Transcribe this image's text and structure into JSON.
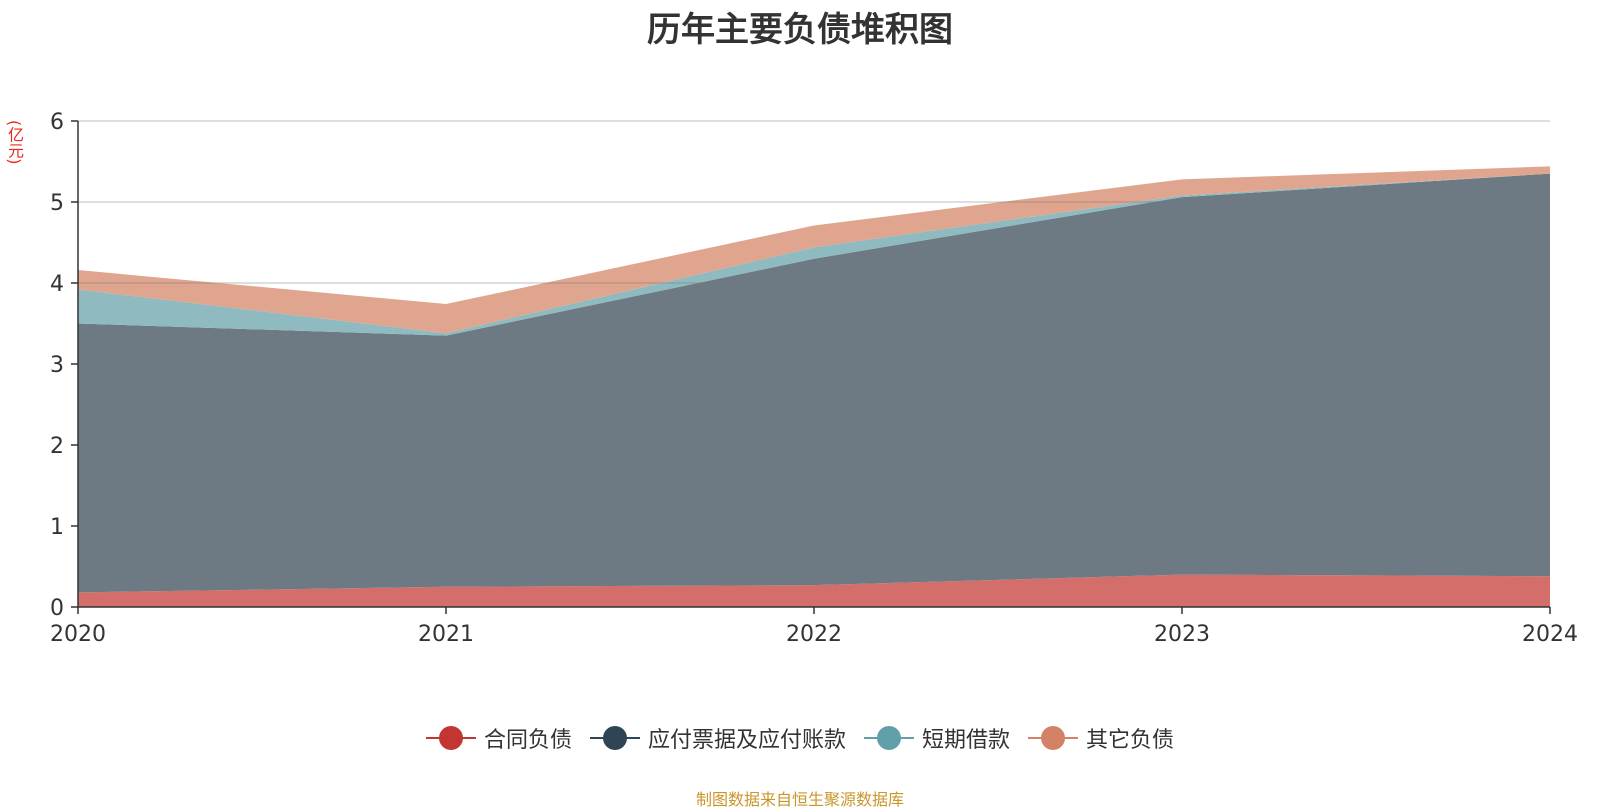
{
  "title": "历年主要负债堆积图",
  "unit_label": "(亿元)",
  "source_note": "制图数据来自恒生聚源数据库",
  "chart_data": {
    "type": "area",
    "stacked": true,
    "title": "历年主要负债堆积图",
    "ylabel": "(亿元)",
    "x": [
      "2020",
      "2021",
      "2022",
      "2023",
      "2024"
    ],
    "ylim": [
      0,
      6
    ],
    "yticks": [
      0,
      1,
      2,
      3,
      4,
      5,
      6
    ],
    "grid": true,
    "legend_position": "bottom",
    "series": [
      {
        "name": "合同负债",
        "color": "#c23531",
        "fill": "#d46e6b",
        "values": [
          0.18,
          0.25,
          0.27,
          0.4,
          0.38
        ]
      },
      {
        "name": "应付票据及应付账款",
        "color": "#2f4554",
        "fill": "#6d7a84",
        "values": [
          3.32,
          3.1,
          4.03,
          4.66,
          4.97
        ]
      },
      {
        "name": "短期借款",
        "color": "#61a0a8",
        "fill": "#8fbbc0",
        "values": [
          0.42,
          0.03,
          0.14,
          0.02,
          0.0
        ]
      },
      {
        "name": "其它负债",
        "color": "#d48265",
        "fill": "#e0a58e",
        "values": [
          0.24,
          0.36,
          0.27,
          0.2,
          0.09
        ]
      }
    ]
  }
}
